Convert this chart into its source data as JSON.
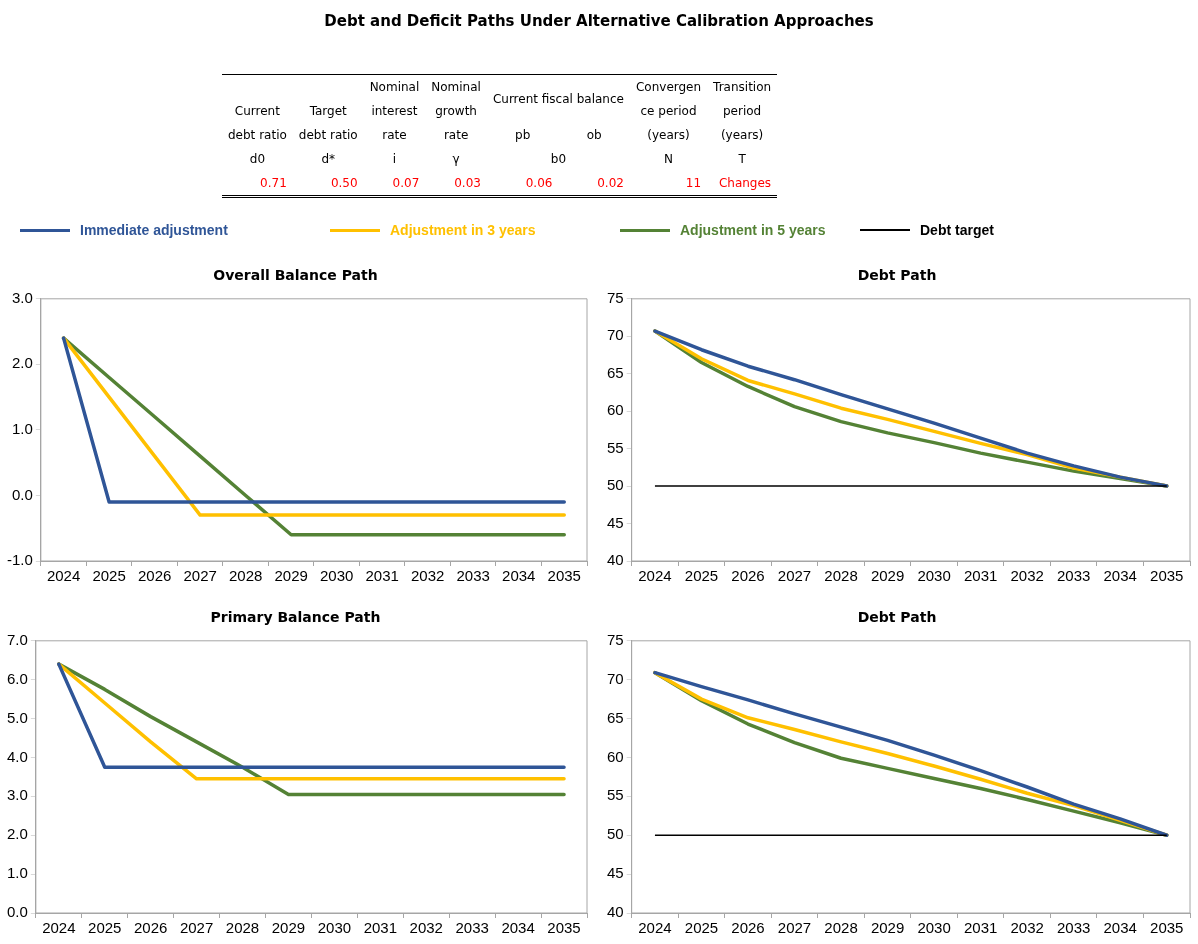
{
  "chart_data": [
    {
      "type": "other",
      "title": "Debt and Deficit Paths Under Alternative Calibration Approaches",
      "annotations": [
        "Current fiscal balance",
        "Current\ndebt ratio",
        "Target\ndebt ratio",
        "Nominal\ninterest\nrate",
        "Nominal\ngrowth\nrate",
        "pb",
        "ob",
        "Convergen\nce period\n(years)",
        "Transition\nperiod\n(years)",
        "d0",
        "d*",
        "i",
        "γ",
        "b0",
        "N",
        "T",
        "0.71",
        "0.50",
        "0.07",
        "0.03",
        "0.06",
        "0.02",
        "11",
        "Changes"
      ]
    },
    {
      "type": "line",
      "title": "Overall Balance Path",
      "legend": "top",
      "categories": [
        "2024",
        "2025",
        "2026",
        "2027",
        "2028",
        "2029",
        "2030",
        "2031",
        "2032",
        "2033",
        "2034",
        "2035"
      ],
      "ylim": [
        -1,
        3
      ],
      "yticks": [
        {
          "value": -1,
          "label": "-1.0"
        },
        {
          "value": 0,
          "label": "0.0"
        },
        {
          "value": 1,
          "label": "1.0"
        },
        {
          "value": 2,
          "label": "2.0"
        },
        {
          "value": 3,
          "label": "3.0"
        }
      ],
      "series": [
        {
          "name": "Immediate adjustment",
          "color": "#2f5597",
          "values": [
            2.4,
            -0.1,
            -0.1,
            -0.1,
            -0.1,
            -0.1,
            -0.1,
            -0.1,
            -0.1,
            -0.1,
            -0.1,
            -0.1
          ]
        },
        {
          "name": "Adjustment in 3 years",
          "color": "#ffc000",
          "values": [
            2.4,
            1.5,
            0.6,
            -0.3,
            -0.3,
            -0.3,
            -0.3,
            -0.3,
            -0.3,
            -0.3,
            -0.3,
            -0.3
          ]
        },
        {
          "name": "Adjustment in 5 years",
          "color": "#548235",
          "values": [
            2.4,
            1.8,
            1.2,
            0.6,
            0.0,
            -0.6,
            -0.6,
            -0.6,
            -0.6,
            -0.6,
            -0.6,
            -0.6
          ]
        }
      ]
    },
    {
      "type": "line",
      "title": "Debt Path",
      "categories": [
        "2024",
        "2025",
        "2026",
        "2027",
        "2028",
        "2029",
        "2030",
        "2031",
        "2032",
        "2033",
        "2034",
        "2035"
      ],
      "ylim": [
        40,
        75
      ],
      "yticks": [
        40,
        45,
        50,
        55,
        60,
        65,
        70,
        75
      ],
      "ref_lines": [
        {
          "axis": "y",
          "value": 50,
          "label": "Debt target",
          "color": "#000000"
        }
      ],
      "series": [
        {
          "color": "#2f5597",
          "values": [
            70.7,
            68.2,
            66.0,
            64.2,
            62.2,
            60.3,
            58.4,
            56.4,
            54.4,
            52.7,
            51.2,
            50
          ]
        },
        {
          "color": "#ffc000",
          "values": [
            70.7,
            67.0,
            64.1,
            62.3,
            60.4,
            58.9,
            57.3,
            55.7,
            54.2,
            52.4,
            51.2,
            50
          ]
        },
        {
          "color": "#548235",
          "values": [
            70.7,
            66.5,
            63.3,
            60.6,
            58.6,
            57.1,
            55.8,
            54.4,
            53.2,
            52.0,
            51.0,
            50
          ]
        }
      ]
    },
    {
      "type": "line",
      "title": "Primary Balance Path",
      "categories": [
        "2024",
        "2025",
        "2026",
        "2027",
        "2028",
        "2029",
        "2030",
        "2031",
        "2032",
        "2033",
        "2034",
        "2035"
      ],
      "ylim": [
        0,
        7
      ],
      "yticks": [
        {
          "value": 0,
          "label": "0.0"
        },
        {
          "value": 1,
          "label": "1.0"
        },
        {
          "value": 2,
          "label": "2.0"
        },
        {
          "value": 3,
          "label": "3.0"
        },
        {
          "value": 4,
          "label": "4.0"
        },
        {
          "value": 5,
          "label": "5.0"
        },
        {
          "value": 6,
          "label": "6.0"
        },
        {
          "value": 7,
          "label": "7.0"
        }
      ],
      "series": [
        {
          "color": "#2f5597",
          "values": [
            6.4,
            3.75,
            3.75,
            3.75,
            3.75,
            3.75,
            3.75,
            3.75,
            3.75,
            3.75,
            3.75,
            3.75
          ]
        },
        {
          "color": "#ffc000",
          "values": [
            6.4,
            5.4,
            4.4,
            3.45,
            3.45,
            3.45,
            3.45,
            3.45,
            3.45,
            3.45,
            3.45,
            3.45
          ]
        },
        {
          "color": "#548235",
          "values": [
            6.4,
            5.75,
            5.05,
            4.4,
            3.75,
            3.05,
            3.05,
            3.05,
            3.05,
            3.05,
            3.05,
            3.05
          ]
        }
      ]
    },
    {
      "type": "line",
      "title": "Debt Path",
      "categories": [
        "2024",
        "2025",
        "2026",
        "2027",
        "2028",
        "2029",
        "2030",
        "2031",
        "2032",
        "2033",
        "2034",
        "2035"
      ],
      "ylim": [
        40,
        75
      ],
      "yticks": [
        40,
        45,
        50,
        55,
        60,
        65,
        70,
        75
      ],
      "ref_lines": [
        {
          "axis": "y",
          "value": 50,
          "color": "#000000"
        }
      ],
      "series": [
        {
          "color": "#2f5597",
          "values": [
            70.9,
            69.1,
            67.4,
            65.6,
            63.9,
            62.2,
            60.3,
            58.3,
            56.2,
            54.0,
            52.1,
            50
          ]
        },
        {
          "color": "#ffc000",
          "values": [
            70.9,
            67.5,
            65.1,
            63.6,
            62.0,
            60.5,
            58.9,
            57.2,
            55.4,
            53.8,
            51.9,
            50
          ]
        },
        {
          "color": "#548235",
          "values": [
            70.9,
            67.3,
            64.3,
            61.9,
            59.9,
            58.6,
            57.3,
            56.0,
            54.6,
            53.1,
            51.6,
            50
          ]
        }
      ]
    }
  ]
}
